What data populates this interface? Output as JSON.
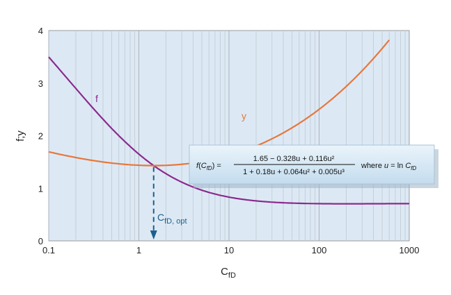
{
  "chart_data": {
    "type": "line",
    "x_scale": "log",
    "xlim": [
      0.1,
      1000
    ],
    "ylim": [
      0,
      4
    ],
    "xticks": [
      "0.1",
      "1",
      "10",
      "100",
      "1000"
    ],
    "yticks": [
      "0",
      "1",
      "2",
      "3",
      "4"
    ],
    "xlabel_main": "C",
    "xlabel_sub": "fD",
    "ylabel": "f;y",
    "grid": "vertical log grid",
    "background": "#dce9f5",
    "series": [
      {
        "name": "f",
        "color": "#8b2a8e",
        "x_range": [
          0.1,
          1000
        ]
      },
      {
        "name": "y",
        "color": "#e8773a",
        "x_range": [
          0.1,
          600
        ]
      }
    ],
    "optimum": {
      "x": 1.46,
      "label_main": "C",
      "label_sub": "fD, opt",
      "color": "#1b5f8c"
    },
    "equation": {
      "lhs_f": "f",
      "lhs_arg_main": "C",
      "lhs_arg_sub": "fD",
      "lhs_equals": ") =",
      "numerator": "1.65 − 0.328u + 0.116u²",
      "denominator": "1 + 0.18u + 0.064u² + 0.005u³",
      "where_text": "where",
      "u_var": "u",
      "eq_ln": "= ln",
      "rhs_main": "C",
      "rhs_sub": "fD"
    }
  }
}
